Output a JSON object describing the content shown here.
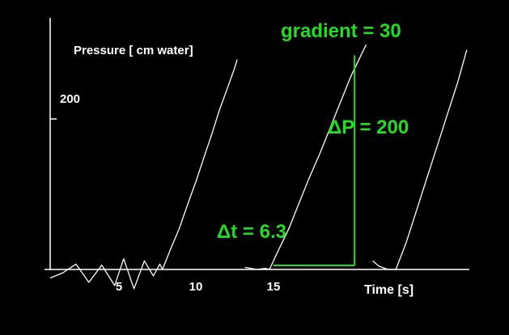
{
  "chart_data": {
    "type": "line",
    "ylabel": "Pressure [ cm water]",
    "xlabel": "Time [s]",
    "xlim": [
      -4.5,
      28
    ],
    "ylim": [
      0,
      235
    ],
    "x_ticks": [
      5,
      10,
      15
    ],
    "y_ticks": [
      200
    ],
    "grid": false,
    "series": [
      {
        "x": [
          -4.5,
          -3.5,
          -2.5,
          -1.5,
          -0.5,
          0.5,
          1.2,
          2.0,
          2.8,
          3.5,
          4.0,
          4.2,
          4.8,
          5.5,
          6.2,
          6.8,
          7.4,
          8.0,
          8.6,
          9.2,
          9.8,
          10.0
        ],
        "y": [
          -8,
          -3,
          5,
          -12,
          4,
          -15,
          10,
          -18,
          8,
          -6,
          5,
          0,
          18,
          38,
          62,
          82,
          104,
          125,
          148,
          168,
          188,
          196
        ]
      },
      {
        "x": [
          10.6,
          11.5,
          12.2,
          12.5,
          13.2,
          14.0,
          14.8,
          15.6,
          16.4,
          17.2,
          18.0,
          18.8,
          19.6,
          20.0
        ],
        "y": [
          2,
          0,
          1,
          0,
          18,
          38,
          62,
          86,
          108,
          132,
          156,
          180,
          200,
          210
        ]
      },
      {
        "x": [
          20.5,
          21.0,
          21.7,
          22.3,
          23.1,
          23.9,
          24.7,
          25.5,
          26.3,
          27.1,
          27.8
        ],
        "y": [
          8,
          3,
          0,
          0,
          25,
          55,
          85,
          115,
          145,
          175,
          205
        ]
      }
    ],
    "annotations": {
      "gradient": "gradient = 30",
      "delta_p": "ΔP = 200",
      "delta_t": "Δt = 6.3"
    },
    "triangle": {
      "x_start": 12.8,
      "x_end": 19.1,
      "y_top": 200
    }
  },
  "colors": {
    "trace": "#ffffff",
    "annotation": "#22dd22",
    "background": "#000000"
  }
}
